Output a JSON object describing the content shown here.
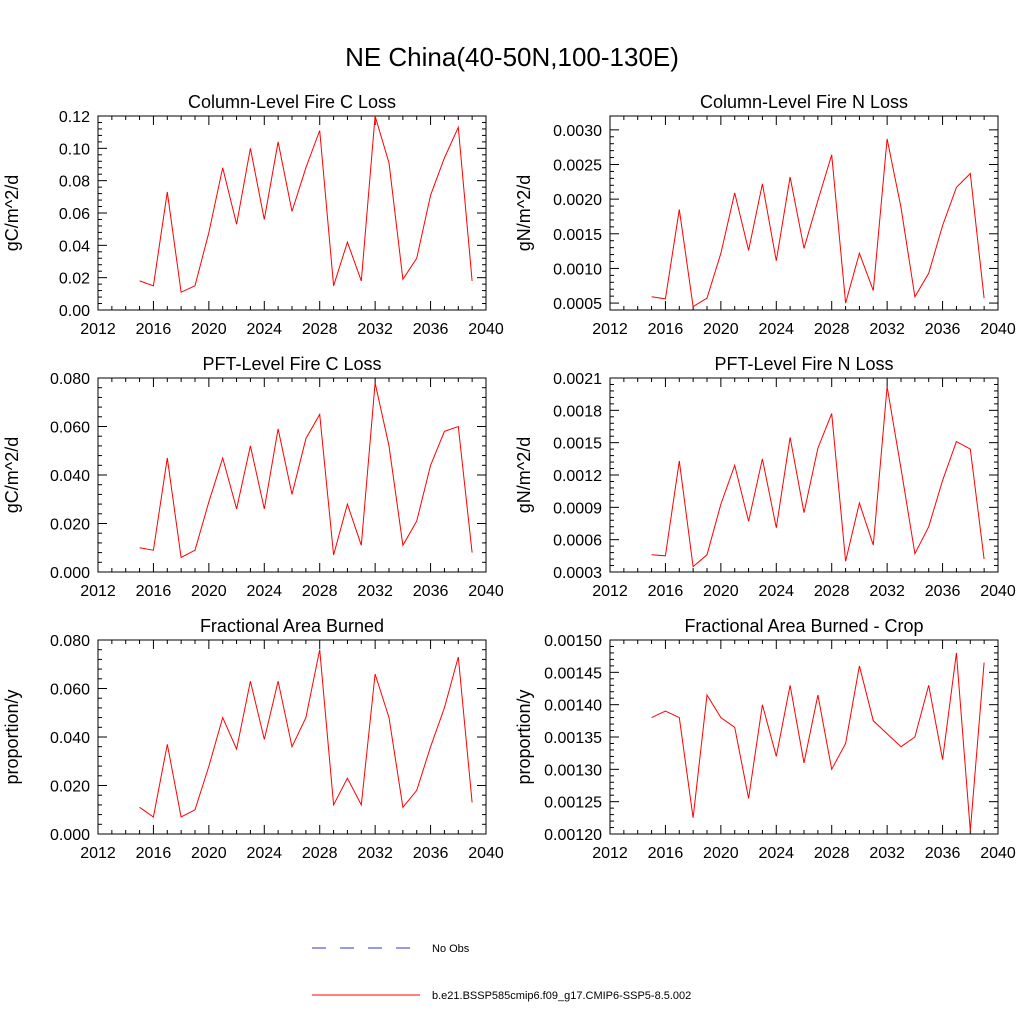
{
  "figure": {
    "title": "NE China(40-50N,100-130E)"
  },
  "colors": {
    "series": "#ff0000",
    "obs": "#3333cc",
    "axis": "#000000"
  },
  "legend": {
    "obs_label": "No Obs",
    "model_label": "b.e21.BSSP585cmip6.f09_g17.CMIP6-SSP5-8.5.002"
  },
  "chart_data": [
    {
      "type": "line",
      "title": "Column-Level Fire C Loss",
      "ylabel": "gC/m^2/d",
      "xlabel": "",
      "xlim": [
        2012,
        2040
      ],
      "xticks": [
        2012,
        2016,
        2020,
        2024,
        2028,
        2032,
        2036,
        2040
      ],
      "xtick_labels": [
        "2012",
        "2016",
        "2020",
        "2024",
        "2028",
        "2032",
        "2036",
        "2040"
      ],
      "ylim": [
        0.0,
        0.12
      ],
      "yticks": [
        0.0,
        0.02,
        0.04,
        0.06,
        0.08,
        0.1,
        0.12
      ],
      "ytick_labels": [
        "0.00",
        "0.02",
        "0.04",
        "0.06",
        "0.08",
        "0.10",
        "0.12"
      ],
      "x": [
        2015,
        2016,
        2017,
        2018,
        2019,
        2020,
        2021,
        2022,
        2023,
        2024,
        2025,
        2026,
        2027,
        2028,
        2029,
        2030,
        2031,
        2032,
        2033,
        2034,
        2035,
        2036,
        2037,
        2038,
        2039
      ],
      "values": [
        0.018,
        0.015,
        0.073,
        0.011,
        0.015,
        0.048,
        0.088,
        0.053,
        0.1,
        0.056,
        0.104,
        0.061,
        0.088,
        0.111,
        0.015,
        0.042,
        0.018,
        0.12,
        0.091,
        0.019,
        0.032,
        0.071,
        0.094,
        0.113,
        0.018
      ]
    },
    {
      "type": "line",
      "title": "Column-Level Fire N Loss",
      "ylabel": "gN/m^2/d",
      "xlabel": "",
      "xlim": [
        2012,
        2040
      ],
      "xticks": [
        2012,
        2016,
        2020,
        2024,
        2028,
        2032,
        2036,
        2040
      ],
      "xtick_labels": [
        "2012",
        "2016",
        "2020",
        "2024",
        "2028",
        "2032",
        "2036",
        "2040"
      ],
      "ylim": [
        0.0004,
        0.0032
      ],
      "yticks": [
        0.0005,
        0.001,
        0.0015,
        0.002,
        0.0025,
        0.003
      ],
      "ytick_labels": [
        "0.0005",
        "0.0010",
        "0.0015",
        "0.0020",
        "0.0025",
        "0.0030"
      ],
      "x": [
        2015,
        2016,
        2017,
        2018,
        2019,
        2020,
        2021,
        2022,
        2023,
        2024,
        2025,
        2026,
        2027,
        2028,
        2029,
        2030,
        2031,
        2032,
        2033,
        2034,
        2035,
        2036,
        2037,
        2038,
        2039
      ],
      "values": [
        0.00059,
        0.00056,
        0.00185,
        0.00045,
        0.00057,
        0.00122,
        0.00209,
        0.00126,
        0.00222,
        0.00111,
        0.00232,
        0.00129,
        0.00198,
        0.00264,
        0.0005,
        0.00122,
        0.00068,
        0.00287,
        0.00188,
        0.00059,
        0.00093,
        0.00162,
        0.00217,
        0.00237,
        0.00057
      ]
    },
    {
      "type": "line",
      "title": "PFT-Level Fire C Loss",
      "ylabel": "gC/m^2/d",
      "xlabel": "",
      "xlim": [
        2012,
        2040
      ],
      "xticks": [
        2012,
        2016,
        2020,
        2024,
        2028,
        2032,
        2036,
        2040
      ],
      "xtick_labels": [
        "2012",
        "2016",
        "2020",
        "2024",
        "2028",
        "2032",
        "2036",
        "2040"
      ],
      "ylim": [
        0.0,
        0.08
      ],
      "yticks": [
        0.0,
        0.02,
        0.04,
        0.06,
        0.08
      ],
      "ytick_labels": [
        "0.000",
        "0.020",
        "0.040",
        "0.060",
        "0.080"
      ],
      "x": [
        2015,
        2016,
        2017,
        2018,
        2019,
        2020,
        2021,
        2022,
        2023,
        2024,
        2025,
        2026,
        2027,
        2028,
        2029,
        2030,
        2031,
        2032,
        2033,
        2034,
        2035,
        2036,
        2037,
        2038,
        2039
      ],
      "values": [
        0.01,
        0.009,
        0.047,
        0.006,
        0.009,
        0.029,
        0.047,
        0.026,
        0.052,
        0.026,
        0.059,
        0.032,
        0.055,
        0.065,
        0.007,
        0.028,
        0.011,
        0.078,
        0.052,
        0.011,
        0.021,
        0.044,
        0.058,
        0.06,
        0.008
      ]
    },
    {
      "type": "line",
      "title": "PFT-Level Fire N Loss",
      "ylabel": "gN/m^2/d",
      "xlabel": "",
      "xlim": [
        2012,
        2040
      ],
      "xticks": [
        2012,
        2016,
        2020,
        2024,
        2028,
        2032,
        2036,
        2040
      ],
      "xtick_labels": [
        "2012",
        "2016",
        "2020",
        "2024",
        "2028",
        "2032",
        "2036",
        "2040"
      ],
      "ylim": [
        0.0003,
        0.0021
      ],
      "yticks": [
        0.0003,
        0.0006,
        0.0009,
        0.0012,
        0.0015,
        0.0018,
        0.0021
      ],
      "ytick_labels": [
        "0.0003",
        "0.0006",
        "0.0009",
        "0.0012",
        "0.0015",
        "0.0018",
        "0.0021"
      ],
      "x": [
        2015,
        2016,
        2017,
        2018,
        2019,
        2020,
        2021,
        2022,
        2023,
        2024,
        2025,
        2026,
        2027,
        2028,
        2029,
        2030,
        2031,
        2032,
        2033,
        2034,
        2035,
        2036,
        2037,
        2038,
        2039
      ],
      "values": [
        0.00046,
        0.00045,
        0.00133,
        0.00035,
        0.00046,
        0.00093,
        0.00129,
        0.00077,
        0.00135,
        0.00071,
        0.00155,
        0.00085,
        0.00145,
        0.00177,
        0.0004,
        0.00094,
        0.00055,
        0.00202,
        0.00126,
        0.00047,
        0.00072,
        0.00115,
        0.00151,
        0.00144,
        0.00042
      ]
    },
    {
      "type": "line",
      "title": "Fractional Area Burned",
      "ylabel": "proportion/y",
      "xlabel": "",
      "xlim": [
        2012,
        2040
      ],
      "xticks": [
        2012,
        2016,
        2020,
        2024,
        2028,
        2032,
        2036,
        2040
      ],
      "xtick_labels": [
        "2012",
        "2016",
        "2020",
        "2024",
        "2028",
        "2032",
        "2036",
        "2040"
      ],
      "ylim": [
        0.0,
        0.08
      ],
      "yticks": [
        0.0,
        0.02,
        0.04,
        0.06,
        0.08
      ],
      "ytick_labels": [
        "0.000",
        "0.020",
        "0.040",
        "0.060",
        "0.080"
      ],
      "x": [
        2015,
        2016,
        2017,
        2018,
        2019,
        2020,
        2021,
        2022,
        2023,
        2024,
        2025,
        2026,
        2027,
        2028,
        2029,
        2030,
        2031,
        2032,
        2033,
        2034,
        2035,
        2036,
        2037,
        2038,
        2039
      ],
      "values": [
        0.011,
        0.007,
        0.037,
        0.007,
        0.01,
        0.028,
        0.048,
        0.035,
        0.063,
        0.039,
        0.063,
        0.036,
        0.048,
        0.076,
        0.012,
        0.023,
        0.012,
        0.066,
        0.048,
        0.011,
        0.018,
        0.036,
        0.052,
        0.073,
        0.013
      ]
    },
    {
      "type": "line",
      "title": "Fractional Area Burned - Crop",
      "ylabel": "proportion/y",
      "xlabel": "",
      "xlim": [
        2012,
        2040
      ],
      "xticks": [
        2012,
        2016,
        2020,
        2024,
        2028,
        2032,
        2036,
        2040
      ],
      "xtick_labels": [
        "2012",
        "2016",
        "2020",
        "2024",
        "2028",
        "2032",
        "2036",
        "2040"
      ],
      "ylim": [
        0.0012,
        0.0015
      ],
      "yticks": [
        0.0012,
        0.00125,
        0.0013,
        0.00135,
        0.0014,
        0.00145,
        0.0015
      ],
      "ytick_labels": [
        "0.00120",
        "0.00125",
        "0.00130",
        "0.00135",
        "0.00140",
        "0.00145",
        "0.00150"
      ],
      "x": [
        2015,
        2016,
        2017,
        2018,
        2019,
        2020,
        2021,
        2022,
        2023,
        2024,
        2025,
        2026,
        2027,
        2028,
        2029,
        2030,
        2031,
        2032,
        2033,
        2034,
        2035,
        2036,
        2037,
        2038,
        2039
      ],
      "values": [
        0.00138,
        0.00139,
        0.00138,
        0.001225,
        0.001415,
        0.00138,
        0.001365,
        0.001255,
        0.0014,
        0.00132,
        0.00143,
        0.00131,
        0.001415,
        0.0013,
        0.00134,
        0.00146,
        0.001375,
        0.001355,
        0.001335,
        0.00135,
        0.00143,
        0.001315,
        0.00148,
        0.001205,
        0.001465
      ]
    }
  ]
}
